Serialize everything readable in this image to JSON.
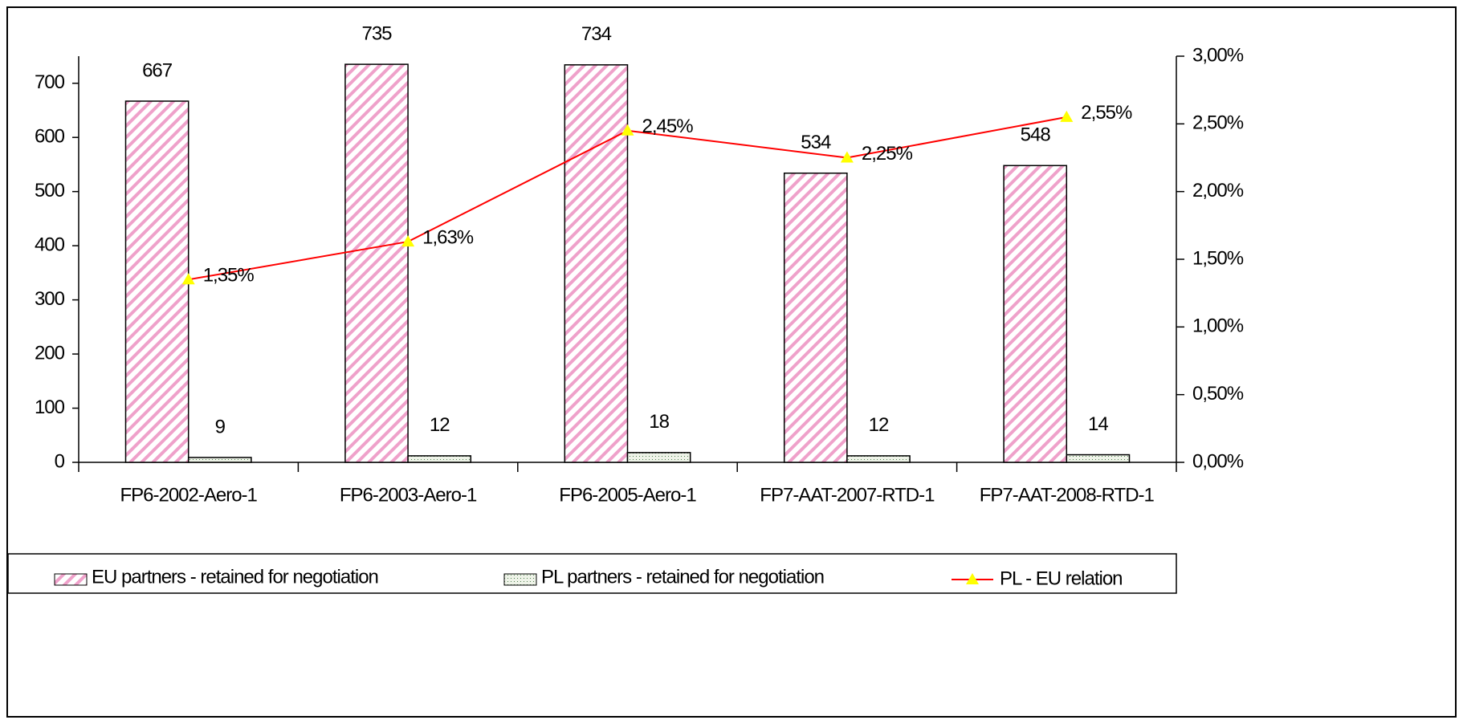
{
  "chart_data": {
    "type": "bar",
    "categories": [
      "FP6-2002-Aero-1",
      "FP6-2003-Aero-1",
      "FP6-2005-Aero-1",
      "FP7-AAT-2007-RTD-1",
      "FP7-AAT-2008-RTD-1"
    ],
    "series": [
      {
        "name": "EU partners - retained for negotiation",
        "color": "#e463a6",
        "values": [
          667,
          735,
          734,
          534,
          548
        ]
      },
      {
        "name": "PL partners - retained for negotiation",
        "color": "#4f7f4f",
        "values": [
          9,
          12,
          18,
          12,
          14
        ]
      },
      {
        "name": "PL - EU relation",
        "type": "line",
        "axis": "y2",
        "color": "#ff0000",
        "marker_color": "#ffff00",
        "values": [
          1.35,
          1.63,
          2.45,
          2.25,
          2.55
        ],
        "value_labels": [
          "1,35%",
          "1,63%",
          "2,45%",
          "2,25%",
          "2,55%"
        ]
      }
    ],
    "ylim": [
      0,
      750
    ],
    "yticks": [
      0,
      100,
      200,
      300,
      400,
      500,
      600,
      700
    ],
    "y2lim": [
      0,
      3
    ],
    "y2ticks": [
      {
        "value": 0,
        "label": "0,00%"
      },
      {
        "value": 0.5,
        "label": "0,50%"
      },
      {
        "value": 1,
        "label": "1,00%"
      },
      {
        "value": 1.5,
        "label": "1,50%"
      },
      {
        "value": 2,
        "label": "2,00%"
      },
      {
        "value": 2.5,
        "label": "2,50%"
      },
      {
        "value": 3,
        "label": "3,00%"
      }
    ],
    "legend": "bottom"
  }
}
